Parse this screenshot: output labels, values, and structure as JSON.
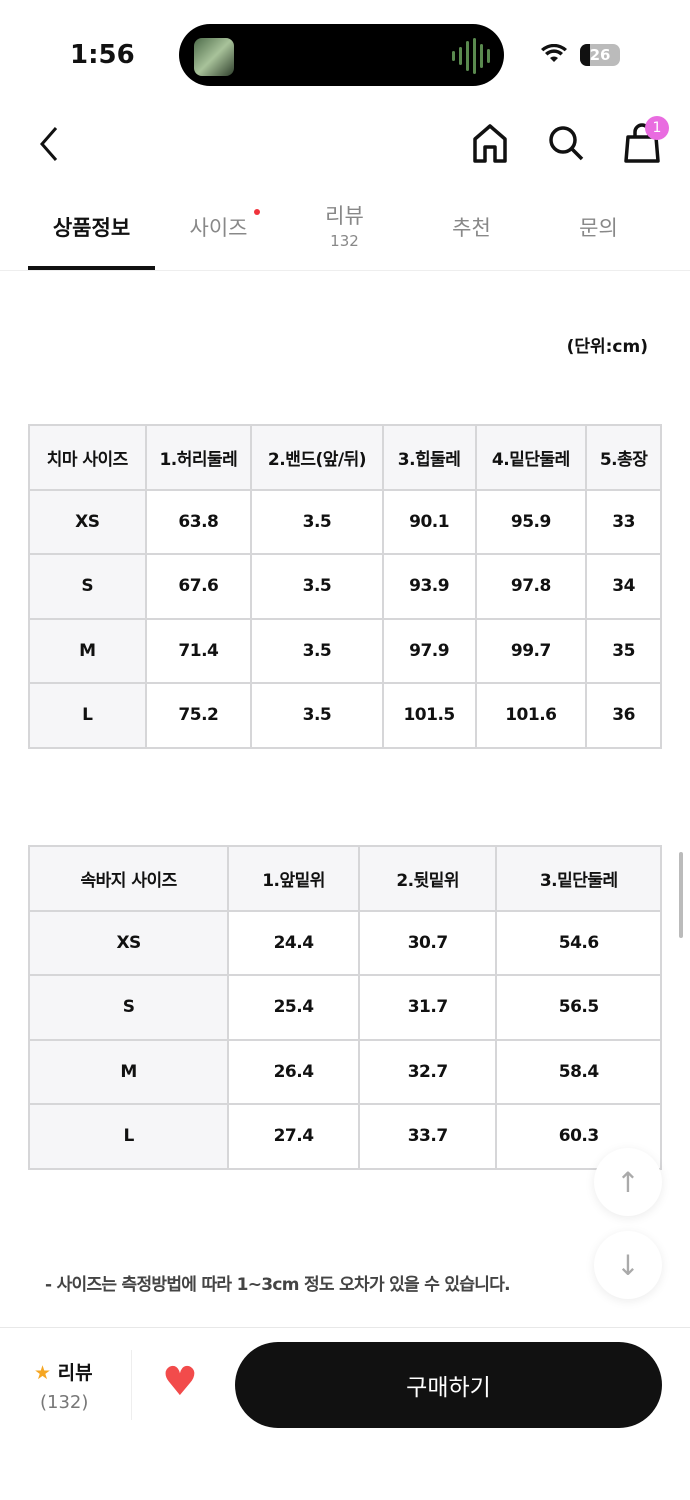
{
  "status_bar": {
    "time": "1:56",
    "battery": "26"
  },
  "header": {
    "cart_badge": "1"
  },
  "tabs": [
    {
      "label": "상품정보",
      "active": true
    },
    {
      "label": "사이즈",
      "dot": true
    },
    {
      "label": "리뷰",
      "count": "132"
    },
    {
      "label": "추천"
    },
    {
      "label": "문의"
    }
  ],
  "unit_label": "(단위:cm)",
  "skirt_table": {
    "headers": [
      "치마 사이즈",
      "1.허리둘레",
      "2.밴드(앞/뒤)",
      "3.힙둘레",
      "4.밑단둘레",
      "5.총장"
    ],
    "rows": [
      [
        "XS",
        "63.8",
        "3.5",
        "90.1",
        "95.9",
        "33"
      ],
      [
        "S",
        "67.6",
        "3.5",
        "93.9",
        "97.8",
        "34"
      ],
      [
        "M",
        "71.4",
        "3.5",
        "97.9",
        "99.7",
        "35"
      ],
      [
        "L",
        "75.2",
        "3.5",
        "101.5",
        "101.6",
        "36"
      ]
    ]
  },
  "pants_table": {
    "headers": [
      "속바지 사이즈",
      "1.앞밑위",
      "2.뒷밑위",
      "3.밑단둘레"
    ],
    "rows": [
      [
        "XS",
        "24.4",
        "30.7",
        "54.6"
      ],
      [
        "S",
        "25.4",
        "31.7",
        "56.5"
      ],
      [
        "M",
        "26.4",
        "32.7",
        "58.4"
      ],
      [
        "L",
        "27.4",
        "33.7",
        "60.3"
      ]
    ]
  },
  "note": "- 사이즈는 측정방법에 따라 1~3cm 정도 오차가 있을 수 있습니다.",
  "bottom_bar": {
    "review_label": "리뷰",
    "review_count": "(132)",
    "buy_label": "구매하기"
  },
  "colors": {
    "accent": "#111111",
    "badge": "#e96ce0",
    "heart": "#f24b4b",
    "star": "#f5a623"
  }
}
